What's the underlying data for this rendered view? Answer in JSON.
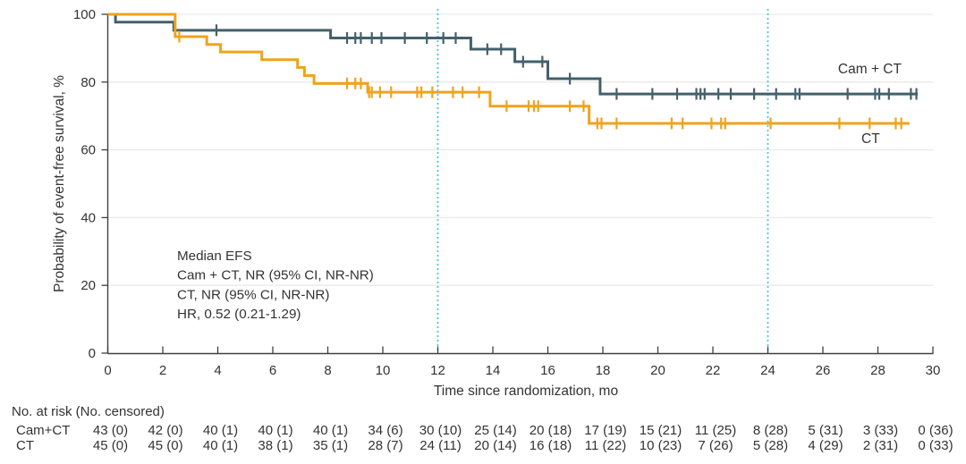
{
  "figure": {
    "title": "",
    "y_axis_label": "Probability of event-free survival, %",
    "x_axis_label": "Time since randomization, mo"
  },
  "chart_data": {
    "type": "line",
    "subtype": "kaplan-meier-step",
    "title": "",
    "xlabel": "Time since randomization, mo",
    "ylabel": "Probability of event-free survival, %",
    "xlim": [
      0,
      30
    ],
    "ylim": [
      0,
      100
    ],
    "x_ticks": [
      0,
      2,
      4,
      6,
      8,
      10,
      12,
      14,
      16,
      18,
      20,
      22,
      24,
      26,
      28,
      30
    ],
    "y_ticks": [
      0,
      20,
      40,
      60,
      80,
      100
    ],
    "gridlines_y": [
      20,
      40,
      60,
      80,
      100
    ],
    "grid_color": "#eaeaea",
    "axis_color": "#404040",
    "text_color": "#333333",
    "reference_lines_x": [
      12,
      24
    ],
    "reference_line_color": "#4fc3e8",
    "legend_position": "inline-right",
    "series": [
      {
        "id": "camct",
        "name": "Cam + CT",
        "color": "#44606b",
        "end_time": 29.45,
        "steps": [
          [
            0,
            100
          ],
          [
            0.28,
            97.7
          ],
          [
            2.4,
            95.3
          ],
          [
            8.1,
            93.0
          ],
          [
            13.2,
            89.7
          ],
          [
            14.8,
            86.0
          ],
          [
            16.0,
            81.0
          ],
          [
            17.9,
            76.5
          ]
        ],
        "censor_times": [
          3.95,
          8.7,
          9.0,
          9.2,
          9.6,
          9.95,
          10.8,
          11.6,
          12.2,
          12.65,
          13.8,
          14.3,
          15.1,
          15.8,
          16.8,
          18.5,
          19.8,
          20.7,
          21.4,
          21.55,
          21.7,
          22.2,
          22.65,
          23.5,
          24.3,
          25.0,
          25.15,
          26.9,
          27.9,
          28.05,
          28.4,
          29.2,
          29.4
        ],
        "label_anchor": {
          "t": 26.55,
          "v": 76.5,
          "dy": -23
        }
      },
      {
        "id": "ct",
        "name": "CT",
        "color": "#efa31d",
        "end_time": 29.15,
        "steps": [
          [
            0,
            100
          ],
          [
            2.45,
            93.4
          ],
          [
            3.6,
            91.1
          ],
          [
            4.1,
            88.9
          ],
          [
            5.6,
            86.6
          ],
          [
            6.9,
            84.3
          ],
          [
            7.15,
            81.9
          ],
          [
            7.5,
            79.6
          ],
          [
            9.45,
            77.0
          ],
          [
            13.9,
            72.9
          ],
          [
            17.5,
            67.8
          ]
        ],
        "censor_times": [
          2.6,
          8.7,
          9.0,
          9.2,
          9.5,
          9.6,
          9.9,
          10.3,
          11.25,
          11.4,
          11.8,
          12.55,
          12.9,
          13.5,
          14.5,
          15.3,
          15.5,
          15.65,
          16.8,
          17.3,
          17.8,
          17.95,
          18.5,
          20.5,
          20.9,
          21.95,
          22.3,
          22.45,
          24.1,
          26.6,
          27.7,
          28.65,
          28.85
        ],
        "label_anchor": {
          "t": 27.4,
          "v": 67.8,
          "dy": 22
        }
      }
    ],
    "annotation": {
      "lines": [
        "Median EFS",
        "Cam + CT, NR (95% CI, NR-NR)",
        "CT, NR (95% CI, NR-NR)",
        "HR, 0.52 (0.21-1.29)"
      ]
    },
    "risk_table": {
      "header": "No. at risk (No. censored)",
      "times": [
        0,
        2,
        4,
        6,
        8,
        10,
        12,
        14,
        16,
        18,
        20,
        22,
        24,
        26,
        28,
        30
      ],
      "rows": [
        {
          "label": "Cam+CT",
          "values": [
            "43 (0)",
            "42 (0)",
            "40 (1)",
            "40 (1)",
            "40 (1)",
            "34 (6)",
            "30 (10)",
            "25 (14)",
            "20 (18)",
            "17 (19)",
            "15 (21)",
            "11 (25)",
            "8 (28)",
            "5 (31)",
            "3 (33)",
            "0 (36)"
          ]
        },
        {
          "label": "CT",
          "values": [
            "45 (0)",
            "45 (0)",
            "40 (1)",
            "38 (1)",
            "35 (1)",
            "28 (7)",
            "24 (11)",
            "20 (14)",
            "16 (18)",
            "11 (22)",
            "10 (23)",
            "7 (26)",
            "5 (28)",
            "4 (29)",
            "2 (31)",
            "0 (33)"
          ]
        }
      ]
    }
  }
}
